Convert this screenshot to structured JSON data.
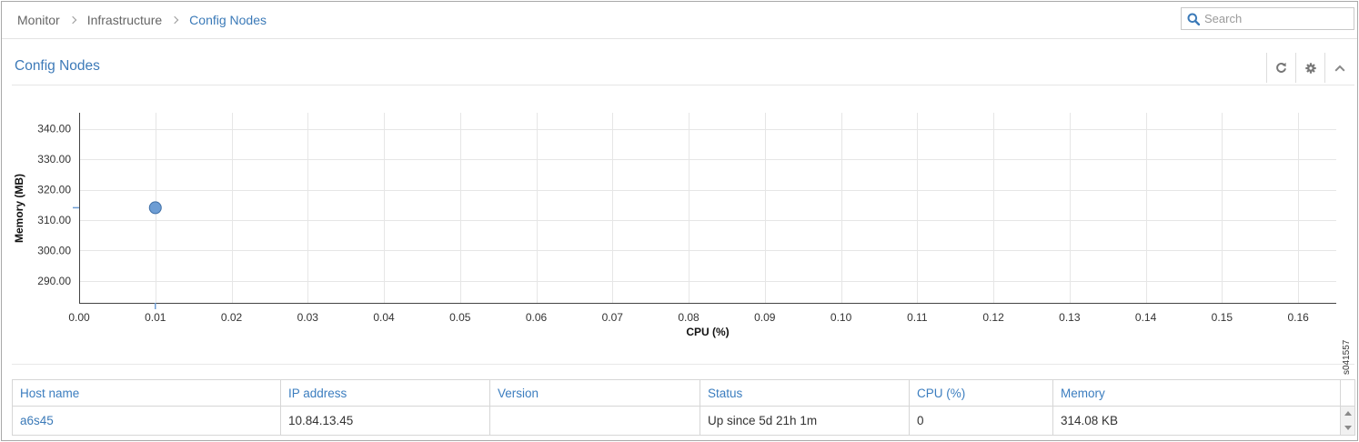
{
  "breadcrumb": {
    "items": [
      "Monitor",
      "Infrastructure",
      "Config Nodes"
    ]
  },
  "search": {
    "placeholder": "Search"
  },
  "panel": {
    "title": "Config Nodes"
  },
  "icons": {
    "search": "search-icon",
    "refresh": "refresh-icon",
    "settings": "gear-icon",
    "collapse": "chevron-up-icon",
    "breadcrumb_separator": "chevron-right-icon",
    "scroll_up": "scroll-up-icon",
    "scroll_down": "scroll-down-icon"
  },
  "colors": {
    "link": "#3b7ab8",
    "text": "#333333",
    "muted": "#666666",
    "grid": "#e6e6e6",
    "axis": "#444444",
    "point_fill": "#6d9dd4",
    "point_stroke": "#3f6fa6"
  },
  "chart_data": {
    "type": "scatter",
    "xlabel": "CPU (%)",
    "ylabel": "Memory (MB)",
    "x_ticks": [
      "0.00",
      "0.01",
      "0.02",
      "0.03",
      "0.04",
      "0.05",
      "0.06",
      "0.07",
      "0.08",
      "0.09",
      "0.10",
      "0.11",
      "0.12",
      "0.13",
      "0.14",
      "0.15",
      "0.16"
    ],
    "y_ticks": [
      "290.00",
      "300.00",
      "310.00",
      "320.00",
      "330.00",
      "340.00"
    ],
    "xlim": [
      0,
      0.165
    ],
    "ylim": [
      282.8,
      345.3
    ],
    "grid": true,
    "points": [
      {
        "x": 0.01,
        "y": 314.08
      }
    ]
  },
  "table": {
    "columns": [
      "Host name",
      "IP address",
      "Version",
      "Status",
      "CPU (%)",
      "Memory"
    ],
    "rows": [
      {
        "host_name": "a6s45",
        "ip_address": "10.84.13.45",
        "version": "",
        "status": "Up since 5d 21h 1m",
        "cpu": "0",
        "memory": "314.08 KB"
      }
    ]
  },
  "figure_id": "s041557"
}
